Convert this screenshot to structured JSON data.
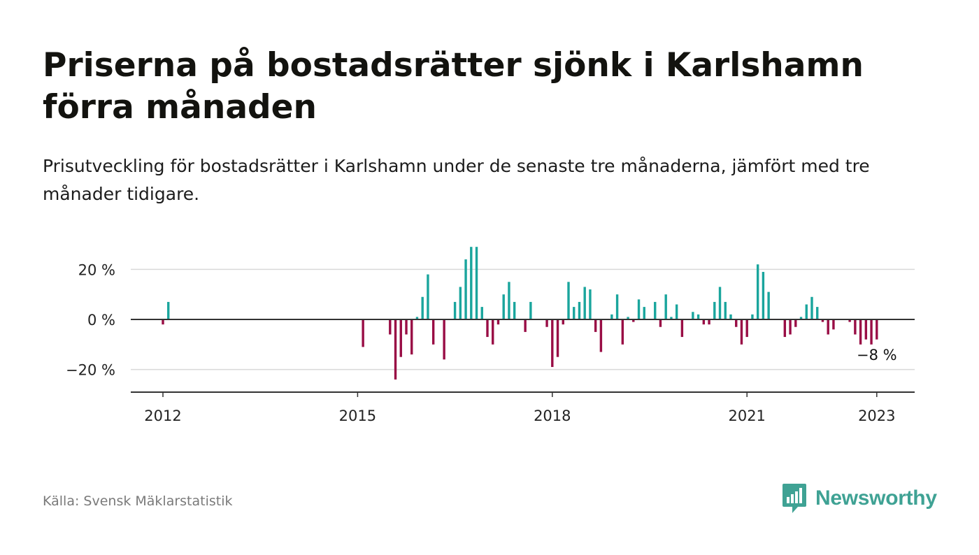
{
  "header": {
    "title": "Priserna på bostadsrätter sjönk i Karlshamn förra månaden",
    "subtitle": "Prisutveckling för bostadsrätter i Karlshamn under de senaste tre månaderna, jämfört med tre månader tidigare."
  },
  "footer": {
    "source": "Källa: Svensk Mäklarstatistik",
    "brand": "Newsworthy"
  },
  "colors": {
    "positive": "#1aa59d",
    "negative": "#990d45",
    "brand": "#3fa294",
    "grid": "#d9d9d9",
    "axis": "#333333"
  },
  "chart_data": {
    "type": "bar",
    "xlabel": "",
    "ylabel": "",
    "ylim": [
      -30,
      30
    ],
    "yticks": [
      20,
      0,
      -20
    ],
    "ytick_labels": [
      "20 %",
      "0 %",
      "−20 %"
    ],
    "xticks": [
      "2012",
      "2015",
      "2018",
      "2021",
      "2023"
    ],
    "xlim": [
      "2011-06",
      "2023-06"
    ],
    "grid": true,
    "annotation": {
      "text": "−8 %",
      "date": "2023-01"
    },
    "series": [
      {
        "values": [
          {
            "date": "2012-01",
            "value": -2
          },
          {
            "date": "2012-02",
            "value": 7
          },
          {
            "date": "2015-02",
            "value": -11
          },
          {
            "date": "2015-07",
            "value": -6
          },
          {
            "date": "2015-08",
            "value": -24
          },
          {
            "date": "2015-09",
            "value": -15
          },
          {
            "date": "2015-10",
            "value": -6
          },
          {
            "date": "2015-11",
            "value": -14
          },
          {
            "date": "2015-12",
            "value": 1
          },
          {
            "date": "2016-01",
            "value": 9
          },
          {
            "date": "2016-02",
            "value": 18
          },
          {
            "date": "2016-03",
            "value": -10
          },
          {
            "date": "2016-05",
            "value": -16
          },
          {
            "date": "2016-07",
            "value": 7
          },
          {
            "date": "2016-08",
            "value": 13
          },
          {
            "date": "2016-09",
            "value": 24
          },
          {
            "date": "2016-10",
            "value": 29
          },
          {
            "date": "2016-11",
            "value": 29
          },
          {
            "date": "2016-12",
            "value": 5
          },
          {
            "date": "2017-01",
            "value": -7
          },
          {
            "date": "2017-02",
            "value": -10
          },
          {
            "date": "2017-03",
            "value": -2
          },
          {
            "date": "2017-04",
            "value": 10
          },
          {
            "date": "2017-05",
            "value": 15
          },
          {
            "date": "2017-06",
            "value": 7
          },
          {
            "date": "2017-08",
            "value": -5
          },
          {
            "date": "2017-09",
            "value": 7
          },
          {
            "date": "2017-12",
            "value": -3
          },
          {
            "date": "2018-01",
            "value": -19
          },
          {
            "date": "2018-02",
            "value": -15
          },
          {
            "date": "2018-03",
            "value": -2
          },
          {
            "date": "2018-04",
            "value": 15
          },
          {
            "date": "2018-05",
            "value": 5
          },
          {
            "date": "2018-06",
            "value": 7
          },
          {
            "date": "2018-07",
            "value": 13
          },
          {
            "date": "2018-08",
            "value": 12
          },
          {
            "date": "2018-09",
            "value": -5
          },
          {
            "date": "2018-10",
            "value": -13
          },
          {
            "date": "2018-12",
            "value": 2
          },
          {
            "date": "2019-01",
            "value": 10
          },
          {
            "date": "2019-02",
            "value": -10
          },
          {
            "date": "2019-03",
            "value": 1
          },
          {
            "date": "2019-04",
            "value": -1
          },
          {
            "date": "2019-05",
            "value": 8
          },
          {
            "date": "2019-06",
            "value": 5
          },
          {
            "date": "2019-08",
            "value": 7
          },
          {
            "date": "2019-09",
            "value": -3
          },
          {
            "date": "2019-10",
            "value": 10
          },
          {
            "date": "2019-11",
            "value": 1
          },
          {
            "date": "2019-12",
            "value": 6
          },
          {
            "date": "2020-01",
            "value": -7
          },
          {
            "date": "2020-03",
            "value": 3
          },
          {
            "date": "2020-04",
            "value": 2
          },
          {
            "date": "2020-05",
            "value": -2
          },
          {
            "date": "2020-06",
            "value": -2
          },
          {
            "date": "2020-07",
            "value": 7
          },
          {
            "date": "2020-08",
            "value": 13
          },
          {
            "date": "2020-09",
            "value": 7
          },
          {
            "date": "2020-10",
            "value": 2
          },
          {
            "date": "2020-11",
            "value": -3
          },
          {
            "date": "2020-12",
            "value": -10
          },
          {
            "date": "2021-01",
            "value": -7
          },
          {
            "date": "2021-02",
            "value": 2
          },
          {
            "date": "2021-03",
            "value": 22
          },
          {
            "date": "2021-04",
            "value": 19
          },
          {
            "date": "2021-05",
            "value": 11
          },
          {
            "date": "2021-08",
            "value": -7
          },
          {
            "date": "2021-09",
            "value": -6
          },
          {
            "date": "2021-10",
            "value": -3
          },
          {
            "date": "2021-11",
            "value": 1
          },
          {
            "date": "2021-12",
            "value": 6
          },
          {
            "date": "2022-01",
            "value": 9
          },
          {
            "date": "2022-02",
            "value": 5
          },
          {
            "date": "2022-03",
            "value": -1
          },
          {
            "date": "2022-04",
            "value": -6
          },
          {
            "date": "2022-05",
            "value": -4
          },
          {
            "date": "2022-08",
            "value": -1
          },
          {
            "date": "2022-09",
            "value": -6
          },
          {
            "date": "2022-10",
            "value": -10
          },
          {
            "date": "2022-11",
            "value": -8
          },
          {
            "date": "2022-12",
            "value": -10
          },
          {
            "date": "2023-01",
            "value": -8
          }
        ]
      }
    ]
  }
}
